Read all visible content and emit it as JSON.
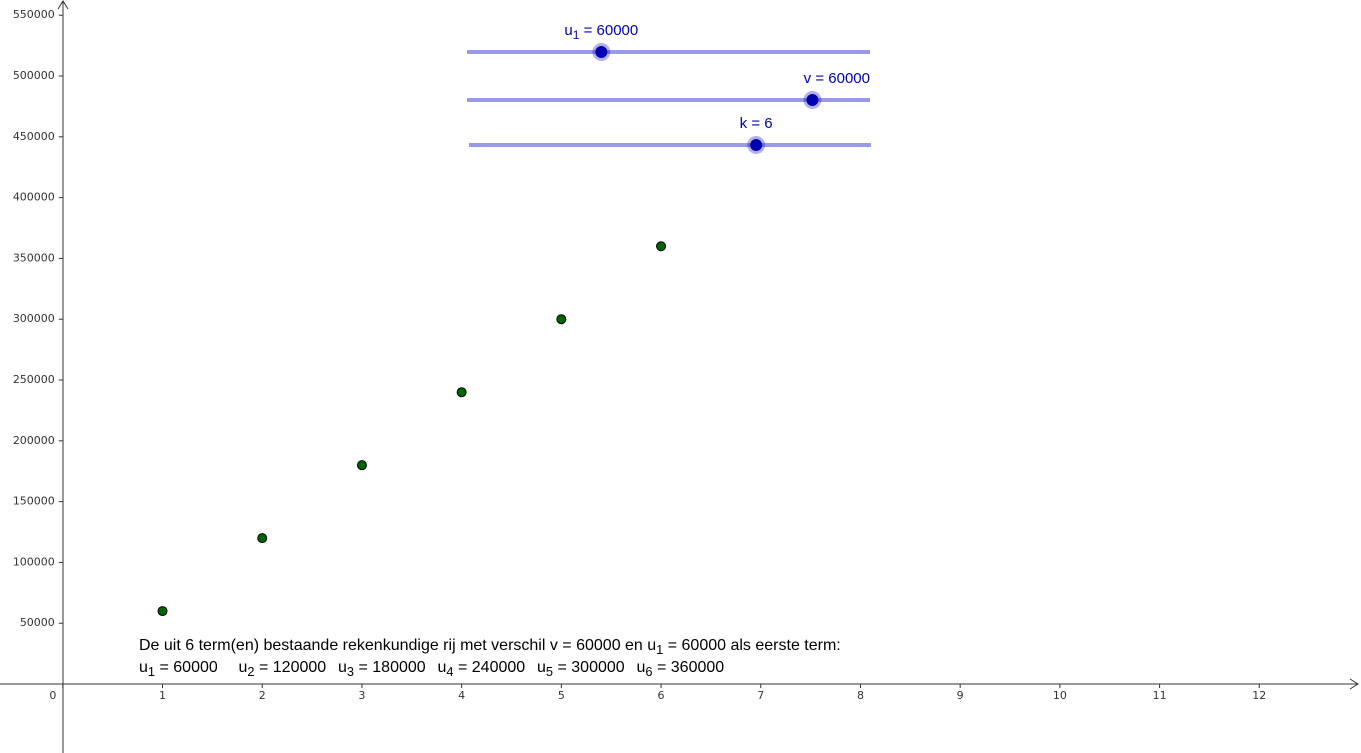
{
  "chart_data": {
    "type": "scatter",
    "x": [
      1,
      2,
      3,
      4,
      5,
      6
    ],
    "y": [
      60000,
      120000,
      180000,
      240000,
      300000,
      360000
    ],
    "color": "#006400",
    "xlim": [
      -0.63,
      13.02
    ],
    "ylim": [
      -56700,
      562500
    ],
    "xticks": [
      0,
      1,
      2,
      3,
      4,
      5,
      6,
      7,
      8,
      9,
      10,
      11,
      12
    ],
    "yticks": [
      50000,
      100000,
      150000,
      200000,
      250000,
      300000,
      350000,
      400000,
      450000,
      500000,
      550000
    ],
    "sliders": [
      {
        "name": "u",
        "sub": "1",
        "eq": " = ",
        "value": 60000,
        "min": 0,
        "max": 180000,
        "color": "#0000b0"
      },
      {
        "name": "v",
        "eq": " = ",
        "value": 60000,
        "min": 0,
        "max": 70000,
        "color": "#0000b0"
      },
      {
        "name": "k",
        "eq": " = ",
        "value": 6,
        "min": 1,
        "max": 8,
        "color": "#0000b0"
      }
    ],
    "description": [
      {
        "text": "De uit 6 term(en) bestaande rekenkundige rij met verschil v = 60000 en u"
      },
      {
        "sub": "1"
      },
      {
        "text": " = 60000 als eerste term:"
      }
    ],
    "term_symbol": "u",
    "term_eq": " = "
  }
}
